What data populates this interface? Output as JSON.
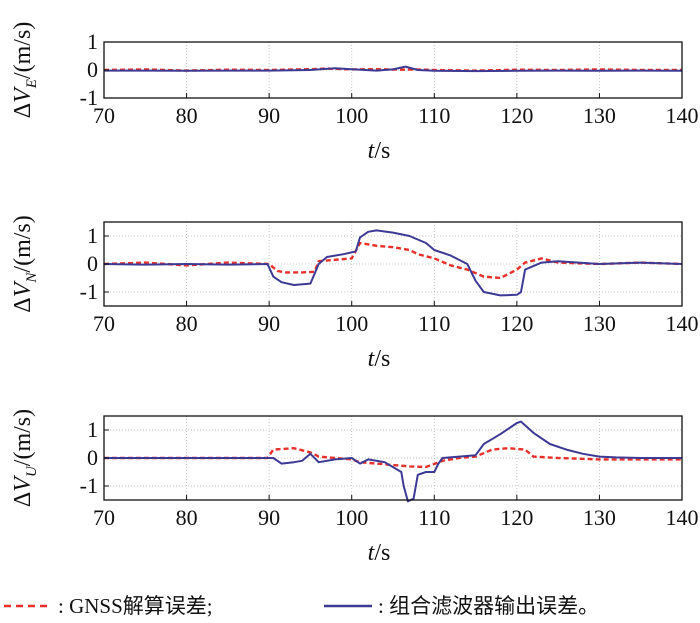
{
  "chart_data": [
    {
      "type": "line",
      "xlabel_var": "t",
      "xlabel_unit": "/s",
      "ylabel_prefix": "ΔV",
      "ylabel_sub": "E",
      "ylabel_unit": "/(m/s)",
      "xlim": [
        70,
        140
      ],
      "ylim": [
        -1,
        1
      ],
      "xticks": [
        70,
        80,
        90,
        100,
        110,
        120,
        130,
        140
      ],
      "yticks": [
        1,
        0,
        -1
      ],
      "grid": true,
      "series": [
        {
          "color": "#e8302a",
          "dash": "dashed",
          "x": [
            70,
            75,
            80,
            85,
            90,
            95,
            97,
            100,
            103,
            106,
            108,
            110,
            115,
            120,
            125,
            130,
            135,
            140
          ],
          "y": [
            0,
            0.02,
            -0.02,
            0.01,
            0,
            0.03,
            0.05,
            0.02,
            0.03,
            0.01,
            0.02,
            0,
            -0.02,
            0.01,
            0,
            0.02,
            0,
            0
          ]
        },
        {
          "color": "#3c3a94",
          "dash": "solid",
          "x": [
            70,
            75,
            80,
            85,
            90,
            95,
            98,
            100,
            103,
            105,
            106.5,
            108,
            110,
            115,
            120,
            125,
            130,
            135,
            140
          ],
          "y": [
            -0.02,
            -0.02,
            -0.03,
            -0.02,
            -0.02,
            0,
            0.06,
            0.03,
            -0.02,
            0.02,
            0.12,
            0,
            -0.03,
            -0.04,
            -0.03,
            -0.02,
            -0.03,
            -0.02,
            -0.03
          ]
        }
      ]
    },
    {
      "type": "line",
      "xlabel_var": "t",
      "xlabel_unit": "/s",
      "ylabel_prefix": "ΔV",
      "ylabel_sub": "N",
      "ylabel_unit": "/(m/s)",
      "xlim": [
        70,
        140
      ],
      "ylim": [
        -1.5,
        1.5
      ],
      "xticks": [
        70,
        80,
        90,
        100,
        110,
        120,
        130,
        140
      ],
      "yticks": [
        1,
        0,
        -1
      ],
      "grid": true,
      "series": [
        {
          "color": "#e8302a",
          "dash": "dashed",
          "x": [
            70,
            75,
            80,
            85,
            90,
            91,
            92,
            94,
            95.5,
            96,
            98,
            100,
            101,
            103,
            105,
            107,
            108,
            110,
            112,
            114,
            116,
            118,
            120,
            121,
            123,
            125,
            130,
            135,
            140
          ],
          "y": [
            0,
            0.05,
            -0.05,
            0.05,
            0,
            -0.25,
            -0.3,
            -0.3,
            -0.28,
            0.1,
            0.15,
            0.2,
            0.75,
            0.65,
            0.6,
            0.5,
            0.35,
            0.2,
            -0.05,
            -0.2,
            -0.45,
            -0.5,
            -0.2,
            0.05,
            0.2,
            0.05,
            0,
            0.05,
            0
          ]
        },
        {
          "color": "#3c3a94",
          "dash": "solid",
          "x": [
            70,
            75,
            80,
            85,
            89.8,
            90.5,
            91.5,
            93,
            95,
            96,
            97,
            99,
            100.5,
            101,
            102,
            103,
            105,
            107,
            109,
            110,
            112,
            114,
            115,
            116,
            118,
            120,
            120.5,
            121,
            123,
            125,
            130,
            135,
            140
          ],
          "y": [
            0,
            -0.02,
            0,
            -0.02,
            0,
            -0.45,
            -0.65,
            -0.75,
            -0.7,
            0,
            0.25,
            0.35,
            0.45,
            0.95,
            1.15,
            1.2,
            1.12,
            1.0,
            0.75,
            0.5,
            0.3,
            0,
            -0.6,
            -1.0,
            -1.12,
            -1.1,
            -1.0,
            -0.2,
            0.05,
            0.1,
            0,
            0.05,
            0
          ]
        }
      ]
    },
    {
      "type": "line",
      "xlabel_var": "t",
      "xlabel_unit": "/s",
      "ylabel_prefix": "ΔV",
      "ylabel_sub": "U",
      "ylabel_unit": "/(m/s)",
      "xlim": [
        70,
        140
      ],
      "ylim": [
        -1.5,
        1.5
      ],
      "xticks": [
        70,
        80,
        90,
        100,
        110,
        120,
        130,
        140
      ],
      "yticks": [
        1,
        0,
        -1
      ],
      "grid": true,
      "series": [
        {
          "color": "#e8302a",
          "dash": "dashed",
          "x": [
            70,
            80,
            89.8,
            90.5,
            93,
            95,
            96,
            98,
            100,
            101,
            103,
            105,
            107,
            109,
            111,
            113,
            115,
            117,
            119,
            121,
            122,
            125,
            130,
            140
          ],
          "y": [
            0,
            0,
            0,
            0.3,
            0.35,
            0.2,
            0.05,
            0,
            -0.05,
            -0.15,
            -0.2,
            -0.25,
            -0.3,
            -0.32,
            -0.1,
            0,
            0.05,
            0.3,
            0.35,
            0.3,
            0.05,
            0,
            -0.05,
            -0.05
          ]
        },
        {
          "color": "#3c3a94",
          "dash": "solid",
          "x": [
            70,
            80,
            90,
            90.5,
            91.5,
            93,
            94,
            95,
            96,
            98,
            100,
            101,
            102,
            104,
            106,
            106.3,
            106.8,
            107.5,
            108,
            109,
            110,
            110.5,
            111,
            113,
            115,
            116,
            118,
            120,
            120.5,
            122,
            124,
            126,
            128,
            130,
            132,
            135,
            140
          ],
          "y": [
            0,
            0,
            0,
            0,
            -0.2,
            -0.15,
            -0.1,
            0.15,
            -0.15,
            -0.05,
            0,
            -0.2,
            -0.05,
            -0.15,
            -0.5,
            -1.0,
            -1.55,
            -1.45,
            -0.6,
            -0.5,
            -0.5,
            -0.2,
            0,
            0.05,
            0.1,
            0.5,
            0.85,
            1.25,
            1.3,
            0.9,
            0.5,
            0.3,
            0.15,
            0.05,
            0.02,
            0,
            0
          ]
        }
      ]
    }
  ],
  "legend": {
    "items": [
      {
        "label": ": GNSS解算误差;",
        "color": "#e8302a",
        "dash": "dashed"
      },
      {
        "label": ": 组合滤波器输出误差。",
        "color": "#3c3a94",
        "dash": "solid"
      }
    ]
  }
}
